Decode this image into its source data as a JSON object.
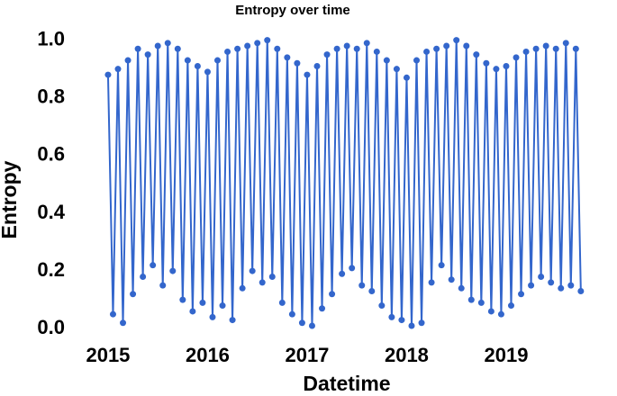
{
  "chart_data": {
    "type": "line",
    "title": "Entropy over time",
    "x_label": "Datetime",
    "y_label": "Entropy",
    "x": [
      2015,
      2015.05,
      2015.1,
      2015.15,
      2015.2,
      2015.25,
      2015.3,
      2015.35,
      2015.4,
      2015.45,
      2015.5,
      2015.55,
      2015.6,
      2015.65,
      2015.7,
      2015.75,
      2015.8,
      2015.85,
      2015.9,
      2015.95,
      2016,
      2016.05,
      2016.1,
      2016.15,
      2016.2,
      2016.25,
      2016.3,
      2016.35,
      2016.4,
      2016.45,
      2016.5,
      2016.55,
      2016.6,
      2016.65,
      2016.7,
      2016.75,
      2016.8,
      2016.85,
      2016.9,
      2016.95,
      2017,
      2017.05,
      2017.1,
      2017.15,
      2017.2,
      2017.25,
      2017.3,
      2017.35,
      2017.4,
      2017.45,
      2017.5,
      2017.55,
      2017.6,
      2017.65,
      2017.7,
      2017.75,
      2017.8,
      2017.85,
      2017.9,
      2017.95,
      2018,
      2018.05,
      2018.1,
      2018.15,
      2018.2,
      2018.25,
      2018.3,
      2018.35,
      2018.4,
      2018.45,
      2018.5,
      2018.55,
      2018.6,
      2018.65,
      2018.7,
      2018.75,
      2018.8,
      2018.85,
      2018.9,
      2018.95,
      2019,
      2019.05,
      2019.1,
      2019.15,
      2019.2,
      2019.25,
      2019.3,
      2019.35,
      2019.4,
      2019.45,
      2019.5,
      2019.55,
      2019.6,
      2019.65,
      2019.7,
      2019.75
    ],
    "series": [
      {
        "color": "#3366cc",
        "values": [
          0.88,
          0.05,
          0.9,
          0.02,
          0.93,
          0.12,
          0.97,
          0.18,
          0.95,
          0.22,
          0.98,
          0.15,
          0.99,
          0.2,
          0.97,
          0.1,
          0.93,
          0.06,
          0.91,
          0.09,
          0.89,
          0.04,
          0.93,
          0.08,
          0.96,
          0.03,
          0.97,
          0.14,
          0.98,
          0.2,
          0.99,
          0.16,
          1.0,
          0.18,
          0.97,
          0.09,
          0.94,
          0.05,
          0.92,
          0.02,
          0.88,
          0.01,
          0.91,
          0.07,
          0.95,
          0.12,
          0.97,
          0.19,
          0.98,
          0.21,
          0.97,
          0.15,
          0.99,
          0.13,
          0.96,
          0.08,
          0.93,
          0.04,
          0.9,
          0.03,
          0.87,
          0.01,
          0.93,
          0.02,
          0.96,
          0.16,
          0.97,
          0.22,
          0.98,
          0.17,
          1.0,
          0.14,
          0.98,
          0.1,
          0.95,
          0.09,
          0.92,
          0.06,
          0.9,
          0.05,
          0.91,
          0.08,
          0.94,
          0.12,
          0.96,
          0.15,
          0.97,
          0.18,
          0.98,
          0.16,
          0.97,
          0.14,
          0.99,
          0.15,
          0.97,
          0.13
        ]
      }
    ],
    "xlim": [
      2014.91,
      2019.86
    ],
    "xticks": [
      2015,
      2016,
      2017,
      2018,
      2019
    ],
    "ylim": [
      -0.015,
      1.03
    ],
    "yticks": [
      {
        "value": 0,
        "label": "0.0"
      },
      0.2,
      0.4,
      0.6,
      0.8,
      {
        "value": 1,
        "label": "1.0"
      }
    ],
    "grid": false
  }
}
